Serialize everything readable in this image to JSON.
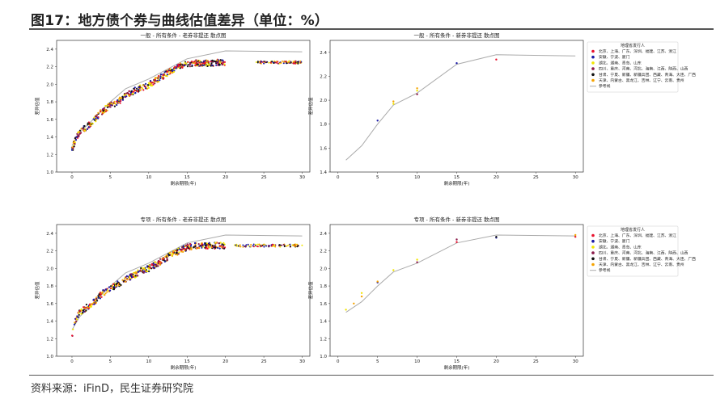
{
  "header": {
    "title": "图17：地方债个券与曲线估值差异（单位：%）"
  },
  "footer": {
    "source": "资料来源：iFinD，民生证券研究院"
  },
  "legend": {
    "title": "地理省发行人",
    "entries": [
      {
        "label": "北京、上海、广东、深圳、福建、江苏、浙江",
        "color": "#e8112d"
      },
      {
        "label": "安徽、宁波、厦门",
        "color": "#1a1aa6"
      },
      {
        "label": "湖北、湖南、青岛、山东",
        "color": "#f2e600"
      },
      {
        "label": "四川、重庆、河南、河北、海南、江西、陕西、山西",
        "color": "#8b1a4a"
      },
      {
        "label": "甘肃、宁夏、新疆、新疆兵团、西藏、青海、大连、广西",
        "color": "#111111"
      },
      {
        "label": "天津、内蒙古、黑龙江、吉林、辽宁、云南、贵州",
        "color": "#f5a300"
      },
      {
        "label": "参考线",
        "color": "#aaaaaa"
      }
    ]
  },
  "chart_data": [
    {
      "type": "scatter",
      "title": "一般 - 所有条件 - 老券非提还 散点图",
      "xlabel": "剩余期限(年)",
      "ylabel": "差异估值",
      "xlim": [
        -2,
        31
      ],
      "ylim": [
        1.0,
        2.5
      ],
      "xticks": [
        "0",
        "5",
        "10",
        "15",
        "20",
        "25",
        "30"
      ],
      "yticks": [
        "1.0",
        "1.2",
        "1.4",
        "1.6",
        "1.8",
        "2.0",
        "2.2",
        "2.4"
      ],
      "reference_line": {
        "x": [
          0,
          1,
          3,
          5,
          7,
          10,
          15,
          20,
          30
        ],
        "y": [
          1.3,
          1.45,
          1.62,
          1.8,
          1.95,
          2.06,
          2.29,
          2.38,
          2.37
        ]
      },
      "scatter_trend": {
        "x": [
          0,
          0.5,
          1,
          2,
          3,
          4,
          5,
          6,
          7,
          8,
          9,
          10,
          11,
          12,
          13,
          14,
          15,
          16,
          17,
          18,
          19,
          20
        ],
        "y": [
          1.25,
          1.38,
          1.45,
          1.52,
          1.6,
          1.7,
          1.76,
          1.8,
          1.87,
          1.92,
          1.96,
          1.99,
          2.05,
          2.1,
          2.16,
          2.2,
          2.23,
          2.24,
          2.24,
          2.24,
          2.25,
          2.25
        ]
      },
      "tail_x": [
        24,
        30
      ],
      "tail_y": 2.25
    },
    {
      "type": "scatter",
      "title": "一般 - 所有条件 - 新券非提还 散点图",
      "xlabel": "剩余期限(年)",
      "ylabel": "差异估值",
      "xlim": [
        -1,
        31
      ],
      "ylim": [
        1.4,
        2.5
      ],
      "xticks": [
        "0",
        "5",
        "10",
        "15",
        "20",
        "25",
        "30"
      ],
      "yticks": [
        "1.4",
        "1.6",
        "1.8",
        "2.0",
        "2.2",
        "2.4"
      ],
      "reference_line": {
        "x": [
          1,
          3,
          5,
          7,
          10,
          15,
          20,
          30
        ],
        "y": [
          1.5,
          1.62,
          1.8,
          1.96,
          2.06,
          2.3,
          2.38,
          2.37
        ]
      },
      "points": [
        {
          "x": 5,
          "y": 1.83,
          "series": 1
        },
        {
          "x": 7,
          "y": 1.97,
          "series": 2
        },
        {
          "x": 7,
          "y": 1.99,
          "series": 5
        },
        {
          "x": 10,
          "y": 2.05,
          "series": 3
        },
        {
          "x": 10,
          "y": 2.08,
          "series": 2
        },
        {
          "x": 10,
          "y": 2.1,
          "series": 5
        },
        {
          "x": 15,
          "y": 2.31,
          "series": 1
        },
        {
          "x": 20,
          "y": 2.34,
          "series": 0
        }
      ]
    },
    {
      "type": "scatter",
      "title": "专项 - 所有条件 - 老券非提还 散点图",
      "xlabel": "剩余期限(年)",
      "ylabel": "差异估值",
      "xlim": [
        -2,
        31
      ],
      "ylim": [
        1.0,
        2.5
      ],
      "xticks": [
        "0",
        "5",
        "10",
        "15",
        "20",
        "25",
        "30"
      ],
      "yticks": [
        "1.0",
        "1.2",
        "1.4",
        "1.6",
        "1.8",
        "2.0",
        "2.2",
        "2.4"
      ],
      "reference_line": {
        "x": [
          0,
          1,
          3,
          5,
          7,
          10,
          15,
          20,
          30
        ],
        "y": [
          1.3,
          1.45,
          1.62,
          1.8,
          1.95,
          2.06,
          2.29,
          2.38,
          2.37
        ]
      },
      "scatter_trend": {
        "x": [
          0,
          0.5,
          1,
          2,
          3,
          4,
          5,
          6,
          7,
          8,
          9,
          10,
          11,
          12,
          13,
          14,
          15,
          16,
          17,
          18,
          19,
          20
        ],
        "y": [
          1.22,
          1.42,
          1.5,
          1.56,
          1.63,
          1.72,
          1.77,
          1.82,
          1.88,
          1.92,
          1.97,
          2.0,
          2.05,
          2.1,
          2.16,
          2.2,
          2.24,
          2.26,
          2.26,
          2.26,
          2.26,
          2.26
        ]
      },
      "tail_x": [
        21,
        30
      ],
      "tail_y": 2.26
    },
    {
      "type": "scatter",
      "title": "专项 - 所有条件 - 新券非提还 散点图",
      "xlabel": "剩余期限(年)",
      "ylabel": "差异估值",
      "xlim": [
        -1,
        31
      ],
      "ylim": [
        1.0,
        2.5
      ],
      "xticks": [
        "0",
        "5",
        "10",
        "15",
        "20",
        "25",
        "30"
      ],
      "yticks": [
        "1.0",
        "1.2",
        "1.4",
        "1.6",
        "1.8",
        "2.0",
        "2.2",
        "2.4"
      ],
      "reference_line": {
        "x": [
          1,
          3,
          5,
          7,
          10,
          15,
          20,
          30
        ],
        "y": [
          1.5,
          1.62,
          1.8,
          1.96,
          2.06,
          2.29,
          2.38,
          2.37
        ]
      },
      "points": [
        {
          "x": 1,
          "y": 1.53,
          "series": 2
        },
        {
          "x": 2,
          "y": 1.6,
          "series": 5
        },
        {
          "x": 3,
          "y": 1.72,
          "series": 2
        },
        {
          "x": 3,
          "y": 1.68,
          "series": 5
        },
        {
          "x": 5,
          "y": 1.84,
          "series": 1
        },
        {
          "x": 5,
          "y": 1.85,
          "series": 5
        },
        {
          "x": 7,
          "y": 1.98,
          "series": 2
        },
        {
          "x": 10,
          "y": 2.07,
          "series": 3
        },
        {
          "x": 10,
          "y": 2.1,
          "series": 2
        },
        {
          "x": 15,
          "y": 2.3,
          "series": 0
        },
        {
          "x": 15,
          "y": 2.33,
          "series": 3
        },
        {
          "x": 20,
          "y": 2.35,
          "series": 1
        },
        {
          "x": 20,
          "y": 2.36,
          "series": 4
        },
        {
          "x": 30,
          "y": 2.36,
          "series": 0
        },
        {
          "x": 30,
          "y": 2.38,
          "series": 5
        }
      ]
    }
  ]
}
